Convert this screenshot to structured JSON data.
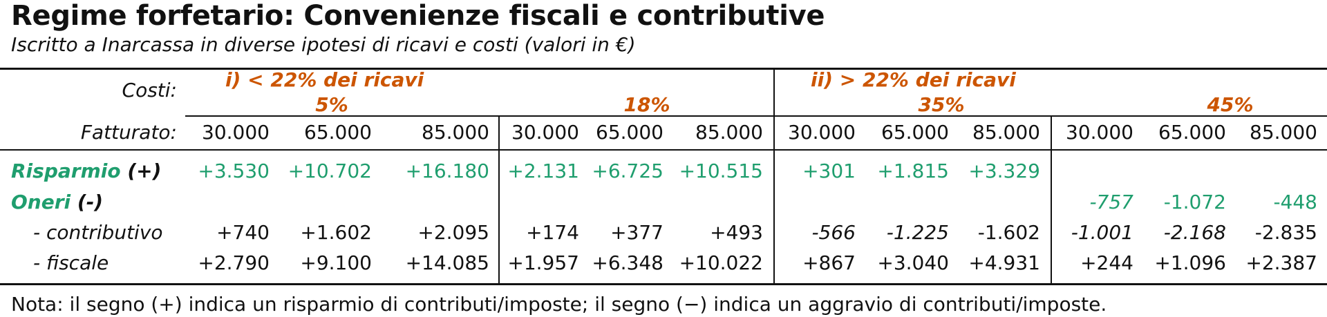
{
  "title": "Regime forfetario: Convenienze fiscali e contributive",
  "subtitle": "Iscritto a Inarcassa in diverse ipotesi di ricavi e costi (valori in €)",
  "labels": {
    "costi": "Costi:",
    "fatturato": "Fatturato:",
    "risparmio_word": "Risparmio",
    "risparmio_sign": "(+)",
    "oneri_word": "Oneri",
    "oneri_sign": "(-)",
    "contributivo": "- contributivo",
    "fiscale": "- fiscale"
  },
  "groups": {
    "g1": "i) < 22% dei ricavi",
    "g2": "ii) > 22% dei ricavi"
  },
  "cost_pcts": [
    "5%",
    "18%",
    "35%",
    "45%"
  ],
  "fatturato": [
    "30.000",
    "65.000",
    "85.000",
    "30.000",
    "65.000",
    "85.000",
    "30.000",
    "65.000",
    "85.000",
    "30.000",
    "65.000",
    "85.000"
  ],
  "risparmio": [
    "+3.530",
    "+10.702",
    "+16.180",
    "+2.131",
    "+6.725",
    "+10.515",
    "+301",
    "+1.815",
    "+3.329",
    "",
    "",
    ""
  ],
  "oneri": [
    "",
    "",
    "",
    "",
    "",
    "",
    "",
    "",
    "",
    "-757",
    "-1.072",
    "-448"
  ],
  "contributivo": [
    "+740",
    "+1.602",
    "+2.095",
    "+174",
    "+377",
    "+493",
    "-566",
    "-1.225",
    "-1.602",
    "-1.001",
    "-2.168",
    "-2.835"
  ],
  "fiscale": [
    "+2.790",
    "+9.100",
    "+14.085",
    "+1.957",
    "+6.348",
    "+10.022",
    "+867",
    "+3.040",
    "+4.931",
    "+244",
    "+1.096",
    "+2.387"
  ],
  "note": "Nota: il segno (+) indica un risparmio di contributi/imposte; il segno (−) indica un aggravio di contributi/imposte.",
  "colors": {
    "orange": "#cc5500",
    "green": "#1f9e6e"
  }
}
